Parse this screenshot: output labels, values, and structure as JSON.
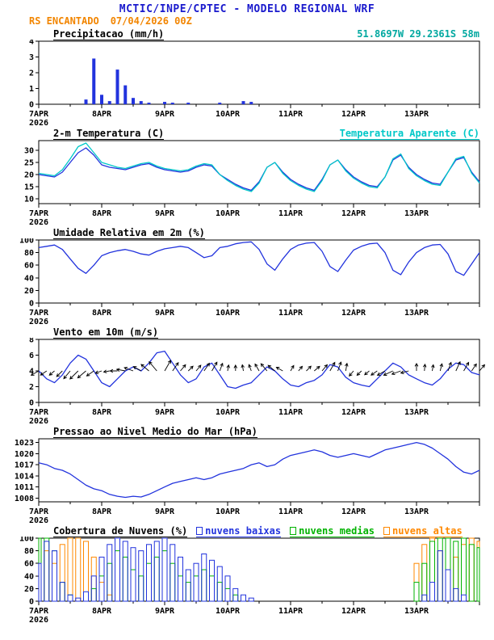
{
  "header": {
    "title": "MCTIC/INPE/CPTEC - MODELO REGIONAL WRF",
    "station": "RS ENCANTADO",
    "run_datetime": "07/04/2026 00Z",
    "location": "51.8697W 29.2361S 58m",
    "title_color": "#1a1acd",
    "subtitle_color": "#f28500",
    "location_color": "#00a8a0"
  },
  "x_axis": {
    "labels": [
      "7APR",
      "8APR",
      "9APR",
      "10APR",
      "11APR",
      "12APR",
      "13APR"
    ],
    "year": "2026",
    "t_max_hours": 168,
    "step_hours": 3,
    "major_tick_hours": 24,
    "minor_tick_hours": 12
  },
  "chart_data": [
    {
      "type": "bar",
      "title": "Precipitacao (mm/h)",
      "color": "#2233dd",
      "ylim": [
        0,
        4
      ],
      "yticks": [
        0,
        1,
        2,
        3,
        4
      ],
      "values": [
        0,
        0,
        0,
        0,
        0,
        0,
        0.3,
        2.9,
        0.6,
        0.2,
        2.2,
        1.2,
        0.4,
        0.2,
        0.1,
        0,
        0.15,
        0.1,
        0,
        0.1,
        0,
        0,
        0,
        0.1,
        0,
        0,
        0.2,
        0.15,
        0,
        0,
        0,
        0,
        0,
        0,
        0,
        0,
        0,
        0,
        0,
        0,
        0,
        0,
        0,
        0,
        0,
        0,
        0,
        0,
        0,
        0,
        0,
        0,
        0,
        0,
        0,
        0,
        0
      ]
    },
    {
      "type": "line",
      "title": "2-m Temperatura (C)",
      "ylim": [
        8,
        34
      ],
      "yticks": [
        10,
        15,
        20,
        25,
        30
      ],
      "series": [
        {
          "name": "2-m Temperatura (C)",
          "color": "#2233dd",
          "values": [
            20,
            19.5,
            19,
            21,
            25,
            29,
            31,
            28,
            24,
            23,
            22.5,
            22,
            23,
            24,
            24.5,
            23,
            22,
            21.5,
            21,
            21.5,
            23,
            24,
            23.5,
            20,
            18,
            16,
            14.5,
            13.5,
            17,
            23,
            25,
            21,
            18,
            16,
            14.5,
            13.5,
            18,
            24,
            26,
            22,
            19,
            17,
            15.5,
            15,
            19,
            26,
            28,
            23,
            20,
            18,
            16.5,
            16,
            21,
            26,
            27,
            21,
            17
          ]
        },
        {
          "name": "Temperatura Aparente (C)",
          "color": "#00c8c8",
          "values": [
            20.5,
            20,
            19.5,
            22,
            26.5,
            31.5,
            33,
            29,
            25,
            24,
            23,
            22.5,
            23.5,
            24.5,
            25,
            23.5,
            22.5,
            22,
            21.5,
            22,
            23.5,
            24.5,
            24,
            20,
            17.5,
            15.5,
            14,
            13,
            16.5,
            23,
            25,
            20.5,
            17.5,
            15.5,
            14,
            13,
            17.5,
            24,
            26,
            21.5,
            18.5,
            16.5,
            15,
            14.5,
            19,
            26.5,
            28.5,
            22.5,
            19.5,
            17.5,
            16,
            15.5,
            21,
            26.5,
            27.5,
            20.5,
            16.5
          ]
        }
      ]
    },
    {
      "type": "line",
      "title": "Umidade Relativa em 2m (%)",
      "ylim": [
        0,
        100
      ],
      "yticks": [
        0,
        20,
        40,
        60,
        80,
        100
      ],
      "series": [
        {
          "name": "Umidade Relativa em 2m (%)",
          "color": "#2233dd",
          "values": [
            88,
            90,
            92,
            85,
            70,
            55,
            47,
            60,
            75,
            80,
            83,
            85,
            82,
            78,
            76,
            82,
            86,
            88,
            90,
            88,
            80,
            72,
            75,
            88,
            90,
            94,
            96,
            97,
            85,
            62,
            52,
            70,
            85,
            92,
            95,
            96,
            82,
            58,
            50,
            68,
            84,
            90,
            94,
            95,
            80,
            52,
            45,
            65,
            80,
            88,
            92,
            93,
            78,
            50,
            44,
            62,
            80
          ]
        }
      ]
    },
    {
      "type": "wind",
      "title": "Vento em 10m (m/s)",
      "ylim": [
        0,
        8
      ],
      "yticks": [
        0,
        2,
        4,
        6,
        8
      ],
      "line_color": "#2233dd",
      "arrow_color": "#000000",
      "arrow_anchor_value": 4,
      "speeds": [
        4,
        3,
        2.5,
        3.5,
        5,
        6,
        5.5,
        4,
        2.5,
        2,
        3,
        4,
        4.5,
        4,
        5,
        6.3,
        6.5,
        5,
        3.5,
        2.5,
        3,
        4.5,
        5,
        3.5,
        2,
        1.8,
        2.2,
        2.5,
        3.5,
        4.5,
        4,
        3,
        2.2,
        2,
        2.5,
        2.8,
        3.5,
        4.8,
        4.5,
        3.2,
        2.5,
        2.2,
        2,
        3,
        4,
        5,
        4.5,
        3.5,
        3,
        2.5,
        2.2,
        3,
        4.2,
        5,
        4.8,
        3.8,
        3.5
      ],
      "directions_deg": [
        210,
        215,
        220,
        225,
        230,
        225,
        220,
        215,
        200,
        190,
        180,
        170,
        160,
        150,
        140,
        130,
        60,
        55,
        50,
        45,
        50,
        55,
        60,
        70,
        80,
        90,
        100,
        110,
        120,
        130,
        140,
        150,
        60,
        50,
        45,
        40,
        50,
        60,
        70,
        80,
        230,
        225,
        220,
        215,
        210,
        205,
        200,
        195,
        90,
        85,
        80,
        75,
        70,
        65,
        60,
        55,
        50
      ]
    },
    {
      "type": "line",
      "title": "Pressao ao Nivel Medio do Mar (hPa)",
      "ylim": [
        1007,
        1024
      ],
      "yticks": [
        1008,
        1011,
        1014,
        1017,
        1020,
        1023
      ],
      "series": [
        {
          "name": "Pressao ao Nivel Medio do Mar (hPa)",
          "color": "#2233dd",
          "values": [
            1017.5,
            1017,
            1016,
            1015.5,
            1014.5,
            1013,
            1011.5,
            1010.5,
            1010,
            1009,
            1008.5,
            1008.2,
            1008.5,
            1008.3,
            1009,
            1010,
            1011,
            1012,
            1012.5,
            1013,
            1013.5,
            1013,
            1013.5,
            1014.5,
            1015,
            1015.5,
            1016,
            1017,
            1017.5,
            1016.5,
            1017,
            1018.5,
            1019.5,
            1020,
            1020.5,
            1021,
            1020.5,
            1019.5,
            1019,
            1019.5,
            1020,
            1019.5,
            1019,
            1020,
            1021,
            1021.5,
            1022,
            1022.5,
            1023,
            1022.5,
            1021.5,
            1020,
            1018.5,
            1016.5,
            1015,
            1014.5,
            1015.5
          ]
        }
      ]
    },
    {
      "type": "bar-outline",
      "title": "Cobertura de Nuvens (%)",
      "ylim": [
        0,
        100
      ],
      "yticks": [
        0,
        20,
        40,
        60,
        80,
        100
      ],
      "series": [
        {
          "name": "nuvens baixas",
          "color": "#2233dd",
          "values": [
            60,
            95,
            80,
            30,
            10,
            5,
            15,
            40,
            70,
            90,
            100,
            95,
            85,
            80,
            90,
            95,
            100,
            90,
            70,
            50,
            60,
            75,
            65,
            55,
            40,
            20,
            10,
            5,
            0,
            0,
            0,
            0,
            0,
            0,
            0,
            0,
            0,
            0,
            0,
            0,
            0,
            0,
            0,
            0,
            0,
            0,
            0,
            0,
            0,
            10,
            30,
            80,
            50,
            20,
            10,
            0,
            0
          ]
        },
        {
          "name": "nuvens medias",
          "color": "#00b300",
          "values": [
            100,
            100,
            80,
            30,
            10,
            0,
            0,
            20,
            40,
            60,
            80,
            70,
            50,
            40,
            60,
            70,
            80,
            60,
            40,
            30,
            40,
            50,
            40,
            30,
            20,
            10,
            0,
            0,
            0,
            0,
            0,
            0,
            0,
            0,
            0,
            0,
            0,
            0,
            0,
            0,
            0,
            0,
            0,
            0,
            0,
            0,
            0,
            0,
            30,
            60,
            95,
            100,
            100,
            95,
            100,
            90,
            85
          ]
        },
        {
          "name": "nuvens altas",
          "color": "#ff8800",
          "values": [
            100,
            80,
            60,
            90,
            100,
            100,
            95,
            70,
            30,
            10,
            0,
            0,
            0,
            0,
            0,
            0,
            0,
            0,
            0,
            0,
            0,
            0,
            0,
            0,
            0,
            0,
            0,
            0,
            0,
            0,
            0,
            0,
            0,
            0,
            0,
            0,
            0,
            0,
            0,
            0,
            0,
            0,
            0,
            0,
            0,
            0,
            0,
            0,
            60,
            90,
            100,
            80,
            50,
            70,
            90,
            100,
            95
          ]
        }
      ]
    }
  ]
}
